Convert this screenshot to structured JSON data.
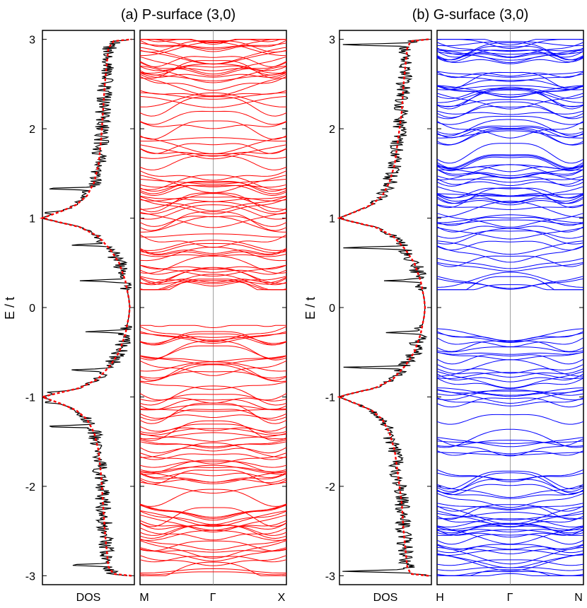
{
  "figure": {
    "ylabel": "E / t"
  },
  "chart_data": [
    {
      "type": "line",
      "title": "(a) P-surface (3,0)",
      "ylabel": "E / t",
      "ylim": [
        -3.1,
        3.1
      ],
      "yticks": [
        3,
        2,
        1,
        0,
        -1,
        -2,
        -3
      ],
      "dos": {
        "xlabel": "DOS",
        "series": [
          {
            "name": "DOS",
            "color": "#000000",
            "style": "solid"
          },
          {
            "name": "DOS (continuum)",
            "color": "#ff0000",
            "style": "dotted"
          }
        ],
        "continuum_E": [
          -3.0,
          -2.98,
          -2.9,
          -2.7,
          -2.5,
          -2.2,
          -1.9,
          -1.6,
          -1.4,
          -1.25,
          -1.15,
          -1.08,
          -1.03,
          -1.0,
          -0.97,
          -0.9,
          -0.8,
          -0.65,
          -0.5,
          -0.3,
          -0.1,
          0.0,
          0.1,
          0.3,
          0.5,
          0.65,
          0.8,
          0.9,
          0.97,
          1.0,
          1.03,
          1.08,
          1.15,
          1.25,
          1.4,
          1.6,
          1.9,
          2.2,
          2.5,
          2.7,
          2.9,
          2.98,
          3.0
        ],
        "continuum_value": [
          1.0,
          0.8,
          0.74,
          0.72,
          0.7,
          0.68,
          0.66,
          0.63,
          0.58,
          0.5,
          0.38,
          0.22,
          0.08,
          0.0,
          0.12,
          0.42,
          0.62,
          0.76,
          0.86,
          0.93,
          0.97,
          0.98,
          0.97,
          0.93,
          0.86,
          0.76,
          0.62,
          0.42,
          0.12,
          0.0,
          0.08,
          0.22,
          0.38,
          0.5,
          0.58,
          0.63,
          0.66,
          0.68,
          0.7,
          0.72,
          0.74,
          0.8,
          1.0
        ],
        "peaks": [
          {
            "E": 1.33,
            "value": 0.02
          },
          {
            "E": 1.06,
            "value": 0.01
          },
          {
            "E": 1.0,
            "value": 0.0
          },
          {
            "E": 0.7,
            "value": 0.3
          },
          {
            "E": 0.3,
            "value": 0.42
          },
          {
            "E": -0.27,
            "value": 0.48
          },
          {
            "E": -0.7,
            "value": 0.3
          },
          {
            "E": -0.95,
            "value": 0.05
          },
          {
            "E": -1.0,
            "value": 0.0
          },
          {
            "E": -1.06,
            "value": 0.01
          },
          {
            "E": -1.33,
            "value": 0.02
          },
          {
            "E": -2.88,
            "value": 0.3
          }
        ]
      },
      "bands": {
        "color": "#ff0000",
        "xticks": [
          "M",
          "Γ",
          "X"
        ],
        "gap": [
          -0.2,
          0.2
        ]
      }
    },
    {
      "type": "line",
      "title": "(b) G-surface (3,0)",
      "ylabel": "E / t",
      "ylim": [
        -3.1,
        3.1
      ],
      "yticks": [
        3,
        2,
        1,
        0,
        -1,
        -2,
        -3
      ],
      "dos": {
        "xlabel": "DOS",
        "series": [
          {
            "name": "DOS",
            "color": "#000000",
            "style": "solid"
          },
          {
            "name": "DOS (continuum)",
            "color": "#ff0000",
            "style": "dotted"
          }
        ],
        "continuum_E": [
          -3.0,
          -2.98,
          -2.9,
          -2.7,
          -2.5,
          -2.2,
          -1.9,
          -1.6,
          -1.4,
          -1.25,
          -1.15,
          -1.08,
          -1.03,
          -1.0,
          -0.97,
          -0.9,
          -0.8,
          -0.65,
          -0.5,
          -0.3,
          -0.1,
          0.0,
          0.1,
          0.3,
          0.5,
          0.65,
          0.8,
          0.9,
          0.97,
          1.0,
          1.03,
          1.08,
          1.15,
          1.25,
          1.4,
          1.6,
          1.9,
          2.2,
          2.5,
          2.7,
          2.9,
          2.98,
          3.0
        ],
        "continuum_value": [
          1.0,
          0.8,
          0.76,
          0.74,
          0.72,
          0.7,
          0.66,
          0.62,
          0.56,
          0.48,
          0.36,
          0.2,
          0.07,
          0.0,
          0.1,
          0.4,
          0.6,
          0.74,
          0.84,
          0.91,
          0.95,
          0.96,
          0.95,
          0.91,
          0.84,
          0.74,
          0.6,
          0.4,
          0.1,
          0.0,
          0.07,
          0.2,
          0.36,
          0.48,
          0.56,
          0.62,
          0.66,
          0.7,
          0.72,
          0.74,
          0.76,
          0.8,
          1.0
        ],
        "peaks": [
          {
            "E": 2.94,
            "value": 0.02
          },
          {
            "E": 1.0,
            "value": 0.0
          },
          {
            "E": 0.67,
            "value": 0.02
          },
          {
            "E": 0.3,
            "value": 0.5
          },
          {
            "E": -0.28,
            "value": 0.52
          },
          {
            "E": -0.67,
            "value": 0.02
          },
          {
            "E": -1.0,
            "value": 0.0
          },
          {
            "E": -2.95,
            "value": 0.02
          }
        ]
      },
      "bands": {
        "color": "#0000ff",
        "xticks": [
          "H",
          "Γ",
          "N"
        ],
        "gap": [
          -0.2,
          0.2
        ]
      }
    }
  ]
}
